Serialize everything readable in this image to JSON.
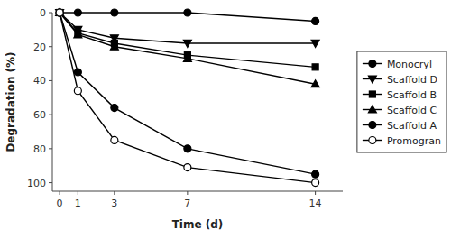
{
  "chart_data": {
    "type": "line",
    "x": [
      0,
      1,
      3,
      7,
      14
    ],
    "series": [
      {
        "name": "Monocryl",
        "values": [
          0,
          0,
          0,
          0,
          5
        ],
        "marker": "circle",
        "color": "black",
        "line_style": "solid"
      },
      {
        "name": "Scaffold D",
        "values": [
          0,
          10,
          15,
          18,
          18
        ],
        "marker": "triangle-down",
        "color": "black",
        "line_style": "solid"
      },
      {
        "name": "Scaffold B",
        "values": [
          0,
          12,
          18,
          25,
          32
        ],
        "marker": "square",
        "color": "black",
        "line_style": "solid"
      },
      {
        "name": "Scaffold C",
        "values": [
          0,
          13,
          20,
          27,
          42
        ],
        "marker": "triangle-up",
        "color": "black",
        "line_style": "solid"
      },
      {
        "name": "Scaffold A",
        "values": [
          0,
          35,
          56,
          80,
          95
        ],
        "marker": "circle",
        "color": "black",
        "line_style": "solid"
      },
      {
        "name": "Promogran",
        "values": [
          0,
          46,
          75,
          91,
          100
        ],
        "marker": "circle-open",
        "color": "black",
        "line_style": "solid"
      }
    ],
    "x_label": "Time (d)",
    "y_label": "Degradation (%)",
    "xlim": [
      -0.4,
      15.5
    ],
    "xticks": [
      0,
      1,
      3,
      7,
      14
    ],
    "ylim": [
      105,
      0
    ],
    "yticks": [
      0,
      20,
      40,
      60,
      80,
      100
    ],
    "grid": false,
    "legend": "right"
  }
}
